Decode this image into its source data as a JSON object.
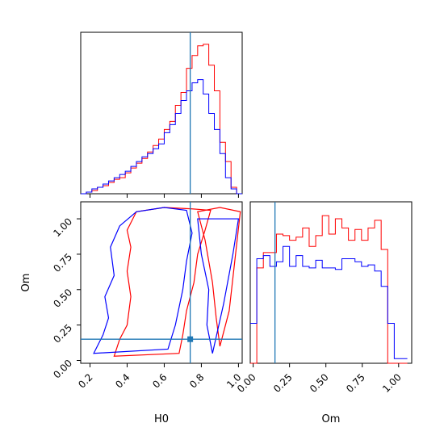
{
  "chart_data": {
    "type": "corner",
    "params": [
      "H0",
      "Om"
    ],
    "truth": {
      "H0": 0.74,
      "Om": 0.15
    },
    "colors": {
      "red": "#ff0000",
      "blue": "#0000ff",
      "truth": "#1f77b4"
    },
    "panels": [
      {
        "id": "h0-marginal",
        "type": "histogram",
        "xlabel": "",
        "x_range": [
          0.15,
          1.02
        ],
        "x_ticks": [
          "0.2",
          "0.4",
          "0.6",
          "0.8",
          "1.0"
        ],
        "bin_edges": [
          0.15,
          0.18,
          0.21,
          0.24,
          0.27,
          0.3,
          0.33,
          0.36,
          0.39,
          0.42,
          0.45,
          0.48,
          0.51,
          0.54,
          0.57,
          0.6,
          0.63,
          0.66,
          0.69,
          0.72,
          0.75,
          0.78,
          0.81,
          0.84,
          0.87,
          0.9,
          0.93,
          0.96,
          0.99,
          1.02
        ],
        "series": [
          {
            "name": "",
            "color": "#ff0000",
            "values": [
              0,
              1,
              2,
              4,
              5,
              7,
              9,
              10,
              13,
              16,
              19,
              22,
              26,
              30,
              34,
              40,
              45,
              55,
              63,
              78,
              86,
              92,
              93,
              80,
              64,
              32,
              20,
              4,
              0
            ]
          },
          {
            "name": "",
            "color": "#0000ff",
            "values": [
              0,
              1,
              3,
              4,
              6,
              8,
              10,
              12,
              14,
              17,
              20,
              23,
              25,
              28,
              31,
              38,
              43,
              50,
              58,
              64,
              69,
              71,
              62,
              50,
              40,
              25,
              10,
              3,
              0
            ]
          }
        ]
      },
      {
        "id": "h0-om-contours",
        "type": "contour",
        "xlabel": "H0",
        "ylabel": "Om",
        "x_range": [
          0.15,
          1.02
        ],
        "y_range": [
          -0.02,
          1.12
        ],
        "x_ticks": [
          "0.2",
          "0.4",
          "0.6",
          "0.8",
          "1.0"
        ],
        "y_ticks": [
          "0.00",
          "0.25",
          "0.50",
          "0.75",
          "1.00"
        ],
        "contours": [
          {
            "color": "#ff0000",
            "points": [
              [
                0.33,
                0.03
              ],
              [
                0.36,
                0.15
              ],
              [
                0.4,
                0.25
              ],
              [
                0.42,
                0.45
              ],
              [
                0.4,
                0.63
              ],
              [
                0.42,
                0.8
              ],
              [
                0.4,
                0.92
              ],
              [
                0.45,
                1.05
              ],
              [
                0.6,
                1.08
              ],
              [
                0.75,
                1.07
              ],
              [
                0.85,
                1.06
              ],
              [
                0.82,
                0.92
              ],
              [
                0.78,
                0.75
              ],
              [
                0.76,
                0.55
              ],
              [
                0.72,
                0.35
              ],
              [
                0.7,
                0.18
              ],
              [
                0.68,
                0.05
              ]
            ]
          },
          {
            "color": "#ff0000",
            "points": [
              [
                0.78,
                1.05
              ],
              [
                0.82,
                0.85
              ],
              [
                0.86,
                0.55
              ],
              [
                0.88,
                0.3
              ],
              [
                0.9,
                0.1
              ],
              [
                0.95,
                0.35
              ],
              [
                0.98,
                0.7
              ],
              [
                1.01,
                1.05
              ],
              [
                0.9,
                1.08
              ]
            ]
          },
          {
            "color": "#0000ff",
            "points": [
              [
                0.22,
                0.05
              ],
              [
                0.27,
                0.18
              ],
              [
                0.3,
                0.3
              ],
              [
                0.28,
                0.45
              ],
              [
                0.33,
                0.6
              ],
              [
                0.31,
                0.8
              ],
              [
                0.36,
                0.95
              ],
              [
                0.45,
                1.05
              ],
              [
                0.6,
                1.08
              ],
              [
                0.72,
                1.06
              ],
              [
                0.75,
                0.9
              ],
              [
                0.72,
                0.7
              ],
              [
                0.7,
                0.5
              ],
              [
                0.66,
                0.25
              ],
              [
                0.62,
                0.08
              ]
            ]
          },
          {
            "color": "#0000ff",
            "points": [
              [
                0.78,
                1.0
              ],
              [
                0.8,
                0.75
              ],
              [
                0.84,
                0.5
              ],
              [
                0.83,
                0.25
              ],
              [
                0.86,
                0.05
              ],
              [
                0.92,
                0.4
              ],
              [
                0.97,
                0.75
              ],
              [
                1.0,
                1.0
              ]
            ]
          }
        ]
      },
      {
        "id": "om-marginal",
        "type": "histogram",
        "xlabel": "Om",
        "x_range": [
          -0.02,
          1.09
        ],
        "x_ticks": [
          "0.00",
          "0.25",
          "0.50",
          "0.75",
          "1.00"
        ],
        "bin_edges": [
          -0.02,
          0.025,
          0.07,
          0.115,
          0.16,
          0.205,
          0.25,
          0.295,
          0.34,
          0.385,
          0.43,
          0.475,
          0.52,
          0.565,
          0.61,
          0.655,
          0.7,
          0.745,
          0.79,
          0.835,
          0.88,
          0.925,
          0.97,
          1.015,
          1.06
        ],
        "series": [
          {
            "name": "",
            "color": "#ff0000",
            "values": [
              0,
              0.62,
              0.72,
              0.72,
              0.84,
              0.83,
              0.8,
              0.82,
              0.88,
              0.76,
              0.83,
              0.96,
              0.84,
              0.94,
              0.88,
              0.8,
              0.87,
              0.8,
              0.88,
              0.93,
              0.74,
              0.0,
              0,
              0
            ]
          },
          {
            "name": "",
            "color": "#0000ff",
            "values": [
              0.26,
              0.68,
              0.7,
              0.63,
              0.66,
              0.76,
              0.63,
              0.7,
              0.63,
              0.62,
              0.67,
              0.62,
              0.62,
              0.61,
              0.68,
              0.68,
              0.66,
              0.63,
              0.64,
              0.6,
              0.5,
              0.26,
              0.03,
              0.03
            ]
          }
        ]
      }
    ]
  }
}
